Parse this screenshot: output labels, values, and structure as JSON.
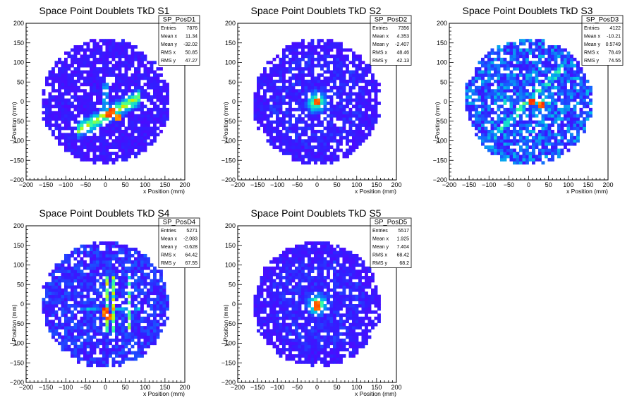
{
  "chart_data": [
    {
      "type": "heatmap",
      "title": "Space Point Doublets TkD S1",
      "xlabel": "x Position (mm)",
      "ylabel": "y Position (mm)",
      "xlim": [
        -200,
        200
      ],
      "ylim": [
        -200,
        200
      ],
      "xticks": [
        "−200",
        "−150",
        "−100",
        "−50",
        "0",
        "50",
        "100",
        "150",
        "200"
      ],
      "yticks": [
        "200",
        "150",
        "100",
        "50",
        "0",
        "−50",
        "−100",
        "−150",
        "−200"
      ],
      "bin_size_mm": 8,
      "fill_radius_mm": 160,
      "pattern": "diagonal-band",
      "hot_spots": [
        [
          10,
          -30
        ],
        [
          20,
          -20
        ],
        [
          30,
          -40
        ]
      ],
      "stats": {
        "name": "SP_PosD1",
        "rows": [
          {
            "label": "Entries",
            "value": "7876"
          },
          {
            "label": "Mean x",
            "value": "11.34"
          },
          {
            "label": "Mean y",
            "value": "-32.02"
          },
          {
            "label": "RMS x",
            "value": "50.85"
          },
          {
            "label": "RMS y",
            "value": "47.27"
          }
        ]
      }
    },
    {
      "type": "heatmap",
      "title": "Space Point Doublets TkD S2",
      "xlabel": "x Position (mm)",
      "ylabel": "y Position (mm)",
      "xlim": [
        -200,
        200
      ],
      "ylim": [
        -200,
        200
      ],
      "xticks": [
        "−200",
        "−150",
        "−100",
        "−50",
        "0",
        "50",
        "100",
        "150",
        "200"
      ],
      "yticks": [
        "200",
        "150",
        "100",
        "50",
        "0",
        "−50",
        "−100",
        "−150",
        "−200"
      ],
      "bin_size_mm": 8,
      "fill_radius_mm": 160,
      "pattern": "center-spot",
      "hot_spots": [
        [
          0,
          0
        ]
      ],
      "stats": {
        "name": "SP_PosD2",
        "rows": [
          {
            "label": "Entries",
            "value": "7356"
          },
          {
            "label": "Mean x",
            "value": "4.353"
          },
          {
            "label": "Mean y",
            "value": "-2.407"
          },
          {
            "label": "RMS x",
            "value": "48.46"
          },
          {
            "label": "RMS y",
            "value": "42.13"
          }
        ]
      }
    },
    {
      "type": "heatmap",
      "title": "Space Point Doublets TkD S3",
      "xlabel": "x Position (mm)",
      "ylabel": "y Position (mm)",
      "xlim": [
        -200,
        200
      ],
      "ylim": [
        -200,
        200
      ],
      "xticks": [
        "−200",
        "−150",
        "−100",
        "−50",
        "0",
        "50",
        "100",
        "150",
        "200"
      ],
      "yticks": [
        "200",
        "150",
        "100",
        "50",
        "0",
        "−50",
        "−100",
        "−150",
        "−200"
      ],
      "bin_size_mm": 8,
      "fill_radius_mm": 160,
      "pattern": "cross-scatter",
      "hot_spots": [
        [
          10,
          0
        ],
        [
          30,
          -5
        ]
      ],
      "stats": {
        "name": "SP_PosD3",
        "rows": [
          {
            "label": "Entries",
            "value": "4122"
          },
          {
            "label": "Mean x",
            "value": "-10.21"
          },
          {
            "label": "Mean y",
            "value": "0.5749"
          },
          {
            "label": "RMS x",
            "value": "78.49"
          },
          {
            "label": "RMS y",
            "value": "74.55"
          }
        ]
      }
    },
    {
      "type": "heatmap",
      "title": "Space Point Doublets TkD S4",
      "xlabel": "x Position (mm)",
      "ylabel": "y Position (mm)",
      "xlim": [
        -200,
        200
      ],
      "ylim": [
        -200,
        200
      ],
      "xticks": [
        "−200",
        "−150",
        "−100",
        "−50",
        "0",
        "50",
        "100",
        "150",
        "200"
      ],
      "yticks": [
        "200",
        "150",
        "100",
        "50",
        "0",
        "−50",
        "−100",
        "−150",
        "−200"
      ],
      "bin_size_mm": 8,
      "fill_radius_mm": 160,
      "pattern": "vertical-lines",
      "hot_spots": [
        [
          0,
          -20
        ],
        [
          10,
          -30
        ]
      ],
      "stats": {
        "name": "SP_PosD4",
        "rows": [
          {
            "label": "Entries",
            "value": "5271"
          },
          {
            "label": "Mean x",
            "value": "-2.083"
          },
          {
            "label": "Mean y",
            "value": "-0.628"
          },
          {
            "label": "RMS x",
            "value": "64.42"
          },
          {
            "label": "RMS y",
            "value": "67.55"
          }
        ]
      }
    },
    {
      "type": "heatmap",
      "title": "Space Point Doublets TkD S5",
      "xlabel": "x Position (mm)",
      "ylabel": "y Position (mm)",
      "xlim": [
        -200,
        200
      ],
      "ylim": [
        -200,
        200
      ],
      "xticks": [
        "−200",
        "−150",
        "−100",
        "−50",
        "0",
        "50",
        "100",
        "150",
        "200"
      ],
      "yticks": [
        "200",
        "150",
        "100",
        "50",
        "0",
        "−50",
        "−100",
        "−150",
        "−200"
      ],
      "bin_size_mm": 8,
      "fill_radius_mm": 160,
      "pattern": "center-spot",
      "hot_spots": [
        [
          -10,
          0
        ],
        [
          0,
          -5
        ]
      ],
      "stats": {
        "name": "SP_PosD5",
        "rows": [
          {
            "label": "Entries",
            "value": "5517"
          },
          {
            "label": "Mean x",
            "value": "1.925"
          },
          {
            "label": "Mean y",
            "value": "7.404"
          },
          {
            "label": "RMS x",
            "value": "68.42"
          },
          {
            "label": "RMS y",
            "value": "68.2"
          }
        ]
      }
    }
  ],
  "colors": {
    "background": "#ffffff",
    "low": "#5a00ff",
    "mid_low": "#1464ff",
    "mid": "#00e6c8",
    "mid_high": "#c8ff00",
    "high": "#ff3200"
  }
}
